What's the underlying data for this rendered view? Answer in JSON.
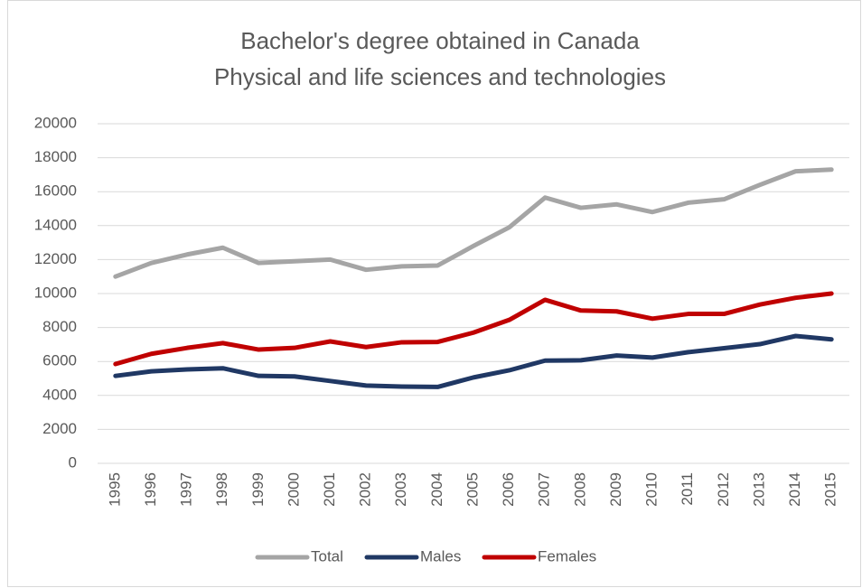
{
  "chart_data": {
    "type": "line",
    "title": "Bachelor's degree obtained in Canada",
    "subtitle": "Physical and life sciences and technologies",
    "categories": [
      "1995",
      "1996",
      "1997",
      "1998",
      "1999",
      "2000",
      "2001",
      "2002",
      "2003",
      "2004",
      "2005",
      "2006",
      "2007",
      "2008",
      "2009",
      "2010",
      "2011",
      "2012",
      "2013",
      "2014",
      "2015"
    ],
    "series": [
      {
        "name": "Total",
        "color": "#a5a5a5",
        "values": [
          11000,
          11800,
          12300,
          12700,
          11800,
          11900,
          12000,
          11400,
          11600,
          11650,
          12800,
          13900,
          15650,
          15050,
          15250,
          14800,
          15350,
          15550,
          16400,
          17200,
          17300
        ]
      },
      {
        "name": "Males",
        "color": "#203864",
        "values": [
          5150,
          5420,
          5530,
          5600,
          5150,
          5120,
          4850,
          4580,
          4520,
          4500,
          5060,
          5480,
          6050,
          6070,
          6350,
          6230,
          6550,
          6780,
          7020,
          7500,
          7300
        ]
      },
      {
        "name": "Females",
        "color": "#c00000",
        "values": [
          5850,
          6450,
          6800,
          7080,
          6700,
          6800,
          7180,
          6850,
          7130,
          7150,
          7700,
          8450,
          9630,
          9000,
          8950,
          8520,
          8800,
          8800,
          9350,
          9750,
          10000
        ]
      }
    ],
    "ylim": [
      0,
      20000
    ],
    "yticks": [
      0,
      2000,
      4000,
      6000,
      8000,
      10000,
      12000,
      14000,
      16000,
      18000,
      20000
    ],
    "grid": true,
    "legend": "bottom"
  }
}
